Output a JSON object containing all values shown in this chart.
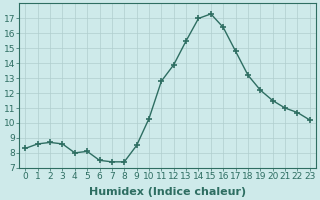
{
  "x": [
    0,
    1,
    2,
    3,
    4,
    5,
    6,
    7,
    8,
    9,
    10,
    11,
    12,
    13,
    14,
    15,
    16,
    17,
    18,
    19,
    20,
    21,
    22,
    23
  ],
  "y": [
    8.3,
    8.6,
    8.7,
    8.6,
    8.0,
    8.1,
    7.5,
    7.4,
    7.4,
    8.5,
    10.3,
    12.8,
    13.9,
    15.5,
    17.0,
    17.3,
    16.4,
    14.8,
    13.2,
    12.2,
    11.5,
    11.0,
    10.7,
    10.2
  ],
  "line_color": "#2e6e62",
  "marker": "+",
  "marker_size": 5,
  "marker_lw": 1.2,
  "background_color": "#ceeaea",
  "grid_color": "#b0cece",
  "xlabel": "Humidex (Indice chaleur)",
  "xlim": [
    -0.5,
    23.5
  ],
  "ylim": [
    7,
    18
  ],
  "yticks": [
    7,
    8,
    9,
    10,
    11,
    12,
    13,
    14,
    15,
    16,
    17
  ],
  "xticks": [
    0,
    1,
    2,
    3,
    4,
    5,
    6,
    7,
    8,
    9,
    10,
    11,
    12,
    13,
    14,
    15,
    16,
    17,
    18,
    19,
    20,
    21,
    22,
    23
  ],
  "tick_color": "#2e6e62",
  "label_color": "#2e6e62",
  "font_size_xlabel": 8,
  "font_size_ticks": 6.5,
  "linewidth": 1.0
}
